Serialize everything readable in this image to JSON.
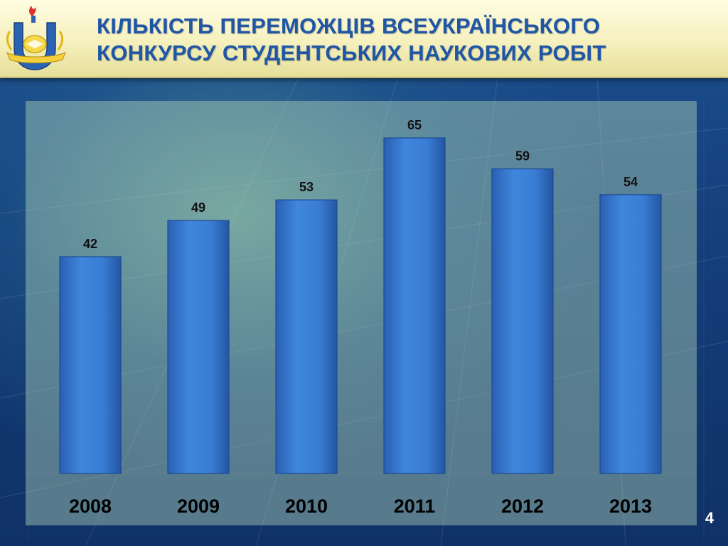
{
  "slide": {
    "title_line1": "КІЛЬКІСТЬ ПЕРЕМОЖЦІВ ВСЕУКРАЇНСЬКОГО",
    "title_line2": "КОНКУРСУ СТУДЕНТСЬКИХ НАУКОВИХ РОБІТ",
    "page_number": "4",
    "logo_icon": "university-emblem-icon",
    "colors": {
      "header_text": "#1f56a6",
      "bar_fill": "#3a78d0",
      "plot_background": "#b9d6c2"
    }
  },
  "chart_data": {
    "type": "bar",
    "categories": [
      "2008",
      "2009",
      "2010",
      "2011",
      "2012",
      "2013"
    ],
    "values": [
      42,
      49,
      53,
      65,
      59,
      54
    ],
    "title": "",
    "xlabel": "",
    "ylabel": "",
    "ylim": [
      0,
      65
    ],
    "grid": false,
    "legend": "none",
    "data_labels": true
  }
}
